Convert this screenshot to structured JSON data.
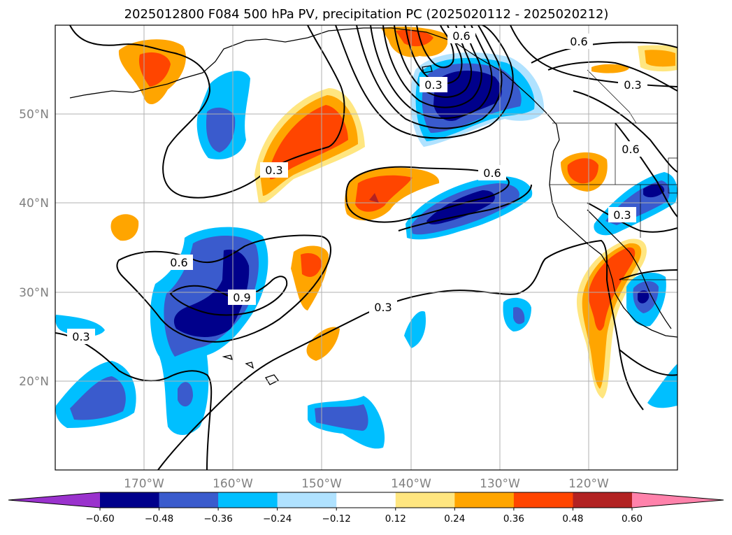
{
  "chart_data": {
    "type": "contour-map",
    "title": "2025012800 F084 500 hPa PV, precipitation PC (2025020112 - 2025020212)",
    "longitude_ticks": [
      "170°W",
      "160°W",
      "150°W",
      "140°W",
      "130°W",
      "120°W"
    ],
    "latitude_ticks": [
      "20°N",
      "30°N",
      "40°N",
      "50°N"
    ],
    "lon_range": [
      -180,
      -110
    ],
    "lat_range": [
      10,
      60
    ],
    "grid": true,
    "colorbar": {
      "orientation": "horizontal",
      "extend": "both",
      "tick_labels": [
        "−0.60",
        "−0.48",
        "−0.36",
        "−0.24",
        "−0.12",
        "0.12",
        "0.24",
        "0.36",
        "0.48",
        "0.60"
      ],
      "bounds": [
        -0.6,
        -0.48,
        -0.36,
        -0.24,
        -0.12,
        0.12,
        0.24,
        0.36,
        0.48,
        0.6
      ],
      "colors": [
        "#9a32cd",
        "#00008b",
        "#3a5bcd",
        "#00bfff",
        "#b0e2ff",
        "#ffffff",
        "#ffe680",
        "#ffa500",
        "#ff4500",
        "#b22222",
        "#ff82ab"
      ]
    },
    "contour_labels": [
      "0.6",
      "0.3",
      "0.6",
      "0.3",
      "0.6",
      "0.3",
      "0.6",
      "0.9",
      "0.3",
      "0.3",
      "0.3",
      "0.6"
    ],
    "contour_levels": [
      0.3,
      0.6,
      0.9
    ]
  }
}
